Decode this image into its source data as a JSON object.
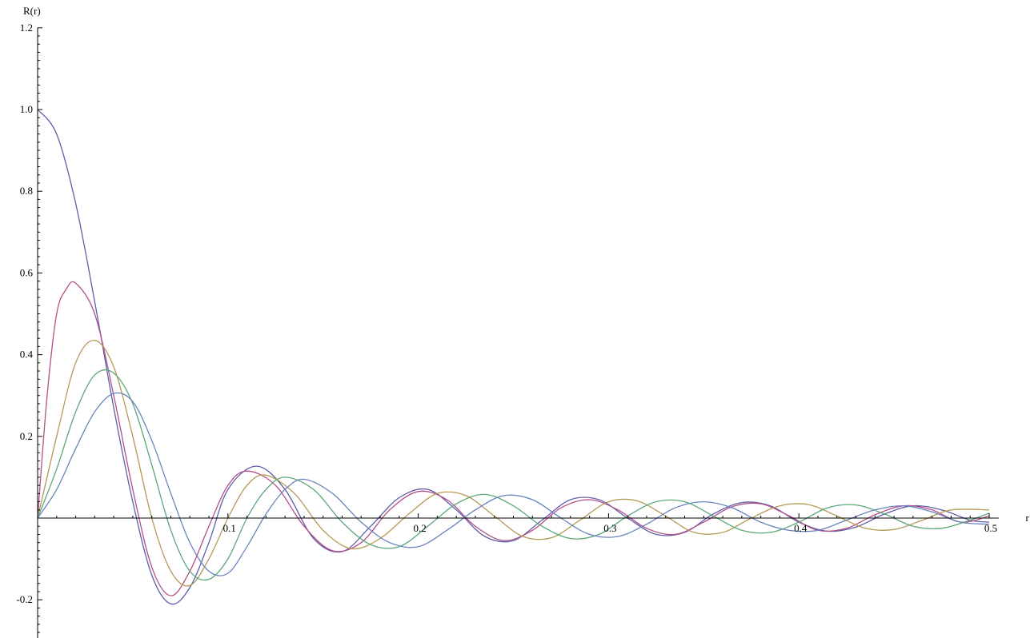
{
  "chart_data": {
    "type": "line",
    "title": "",
    "xlabel": "r",
    "ylabel": "R(r)",
    "xlim": [
      0,
      0.505
    ],
    "ylim": [
      -0.29,
      1.2
    ],
    "x_ticks_major": [
      0.1,
      0.2,
      0.3,
      0.4,
      0.5
    ],
    "x_tick_labels": [
      "0.1",
      "0.2",
      "0.3",
      "0.4",
      "0.5"
    ],
    "y_ticks_major": [
      -0.2,
      0.2,
      0.4,
      0.6,
      0.8,
      1.0,
      1.2
    ],
    "y_tick_labels": [
      "-0.2",
      "0.2",
      "0.4",
      "0.6",
      "0.8",
      "1.0",
      "1.2"
    ],
    "grid": false,
    "legend": "none",
    "series": [
      {
        "color": "#5e5ea8",
        "x": [
          0,
          0.01,
          0.02,
          0.03,
          0.04,
          0.05,
          0.06,
          0.07,
          0.08,
          0.09,
          0.1,
          0.115,
          0.13,
          0.145,
          0.16,
          0.175,
          0.19,
          0.205,
          0.22,
          0.235,
          0.25,
          0.265,
          0.28,
          0.295,
          0.31,
          0.325,
          0.34,
          0.355,
          0.37,
          0.385,
          0.4,
          0.415,
          0.43,
          0.445,
          0.46,
          0.475,
          0.49,
          0.5
        ],
        "y": [
          1.0,
          0.94,
          0.77,
          0.53,
          0.27,
          0.04,
          -0.14,
          -0.21,
          -0.17,
          -0.06,
          0.07,
          0.127,
          0.07,
          -0.05,
          -0.082,
          -0.02,
          0.05,
          0.07,
          0.02,
          -0.045,
          -0.055,
          -0.005,
          0.045,
          0.045,
          0.0,
          -0.04,
          -0.035,
          0.01,
          0.038,
          0.03,
          -0.01,
          -0.032,
          -0.022,
          0.01,
          0.03,
          0.02,
          -0.005,
          -0.01
        ]
      },
      {
        "color": "#b44f8a",
        "x": [
          0,
          0.005,
          0.01,
          0.015,
          0.02,
          0.03,
          0.04,
          0.05,
          0.06,
          0.07,
          0.08,
          0.09,
          0.1,
          0.11,
          0.125,
          0.14,
          0.155,
          0.17,
          0.185,
          0.2,
          0.215,
          0.23,
          0.245,
          0.26,
          0.275,
          0.29,
          0.305,
          0.32,
          0.335,
          0.35,
          0.365,
          0.38,
          0.395,
          0.41,
          0.425,
          0.44,
          0.455,
          0.47,
          0.485,
          0.5
        ],
        "y": [
          0,
          0.3,
          0.5,
          0.56,
          0.575,
          0.5,
          0.3,
          0.07,
          -0.12,
          -0.19,
          -0.13,
          -0.02,
          0.08,
          0.115,
          0.08,
          -0.02,
          -0.08,
          -0.06,
          0.02,
          0.065,
          0.045,
          -0.02,
          -0.055,
          -0.03,
          0.025,
          0.045,
          0.02,
          -0.025,
          -0.04,
          -0.01,
          0.028,
          0.035,
          0.005,
          -0.03,
          -0.025,
          0.008,
          0.03,
          0.02,
          -0.01,
          0.005
        ]
      },
      {
        "color": "#b49a55",
        "x": [
          0,
          0.01,
          0.02,
          0.03,
          0.04,
          0.05,
          0.06,
          0.07,
          0.08,
          0.09,
          0.1,
          0.11,
          0.12,
          0.135,
          0.15,
          0.165,
          0.18,
          0.195,
          0.21,
          0.225,
          0.24,
          0.255,
          0.27,
          0.285,
          0.3,
          0.315,
          0.33,
          0.345,
          0.36,
          0.375,
          0.39,
          0.405,
          0.42,
          0.435,
          0.45,
          0.465,
          0.48,
          0.5
        ],
        "y": [
          0,
          0.2,
          0.38,
          0.435,
          0.37,
          0.2,
          0.0,
          -0.13,
          -0.165,
          -0.1,
          0.0,
          0.08,
          0.105,
          0.06,
          -0.03,
          -0.075,
          -0.05,
          0.01,
          0.06,
          0.055,
          0.005,
          -0.045,
          -0.048,
          -0.005,
          0.04,
          0.042,
          0.005,
          -0.035,
          -0.035,
          0.0,
          0.03,
          0.033,
          0.005,
          -0.025,
          -0.028,
          -0.005,
          0.02,
          0.02
        ]
      },
      {
        "color": "#5aa878",
        "x": [
          0,
          0.01,
          0.02,
          0.03,
          0.04,
          0.05,
          0.06,
          0.07,
          0.08,
          0.09,
          0.1,
          0.11,
          0.12,
          0.13,
          0.145,
          0.16,
          0.175,
          0.19,
          0.205,
          0.22,
          0.235,
          0.25,
          0.265,
          0.28,
          0.295,
          0.31,
          0.325,
          0.34,
          0.355,
          0.37,
          0.385,
          0.4,
          0.415,
          0.43,
          0.445,
          0.46,
          0.475,
          0.49,
          0.5
        ],
        "y": [
          0,
          0.12,
          0.26,
          0.35,
          0.355,
          0.28,
          0.13,
          -0.03,
          -0.13,
          -0.15,
          -0.1,
          0.0,
          0.07,
          0.1,
          0.07,
          -0.01,
          -0.065,
          -0.07,
          -0.02,
          0.035,
          0.058,
          0.03,
          -0.02,
          -0.05,
          -0.04,
          0.005,
          0.04,
          0.04,
          0.005,
          -0.03,
          -0.035,
          -0.01,
          0.025,
          0.032,
          0.01,
          -0.02,
          -0.025,
          -0.005,
          0.012
        ]
      },
      {
        "color": "#6a84c0",
        "x": [
          0,
          0.01,
          0.02,
          0.03,
          0.04,
          0.05,
          0.06,
          0.07,
          0.08,
          0.09,
          0.1,
          0.11,
          0.12,
          0.13,
          0.14,
          0.155,
          0.17,
          0.185,
          0.2,
          0.215,
          0.23,
          0.245,
          0.26,
          0.275,
          0.29,
          0.305,
          0.32,
          0.335,
          0.35,
          0.365,
          0.38,
          0.395,
          0.41,
          0.425,
          0.44,
          0.455,
          0.47,
          0.485,
          0.5
        ],
        "y": [
          0,
          0.07,
          0.17,
          0.26,
          0.305,
          0.285,
          0.19,
          0.06,
          -0.06,
          -0.13,
          -0.135,
          -0.07,
          0.01,
          0.07,
          0.095,
          0.06,
          -0.01,
          -0.06,
          -0.07,
          -0.03,
          0.02,
          0.055,
          0.045,
          0.0,
          -0.04,
          -0.045,
          -0.015,
          0.025,
          0.04,
          0.025,
          -0.01,
          -0.03,
          -0.03,
          -0.005,
          0.02,
          0.03,
          0.015,
          -0.01,
          -0.015
        ]
      }
    ]
  }
}
